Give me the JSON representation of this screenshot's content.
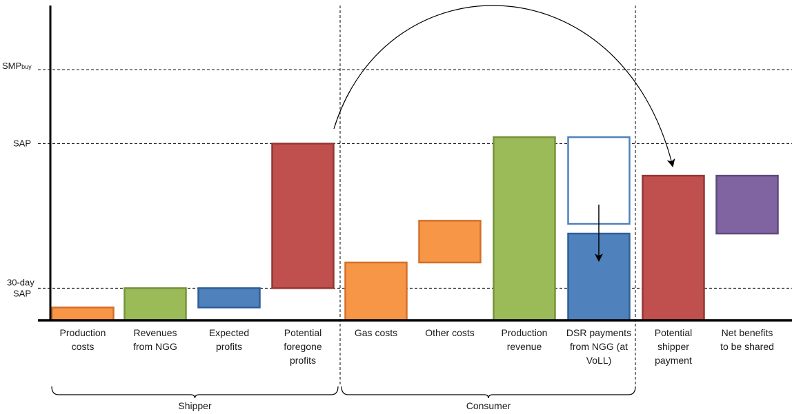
{
  "chart_data": {
    "type": "bar",
    "levels": [
      {
        "label": "SMPbuy",
        "value": 3.9
      },
      {
        "label": "SAP",
        "value": 2.75
      },
      {
        "label": "30-day SAP",
        "value": 0.5
      }
    ],
    "categories": [
      {
        "label": "Production costs",
        "low": 0.0,
        "high": 0.2,
        "color": "#F79646",
        "border": "#D2702A",
        "style": "filled"
      },
      {
        "label": "Revenues from NGG",
        "low": 0.0,
        "high": 0.5,
        "color": "#9BBB59",
        "border": "#76923C",
        "style": "filled"
      },
      {
        "label": "Expected profits",
        "low": 0.2,
        "high": 0.5,
        "color": "#4F81BD",
        "border": "#2F5F97",
        "style": "filled"
      },
      {
        "label": "Potential foregone profits",
        "low": 0.5,
        "high": 2.75,
        "color": "#C0504D",
        "border": "#943634",
        "style": "filled"
      },
      {
        "label": "Gas costs",
        "low": 0.0,
        "high": 0.9,
        "color": "#F79646",
        "border": "#D2702A",
        "style": "filled"
      },
      {
        "label": "Other costs",
        "low": 0.9,
        "high": 1.55,
        "color": "#F79646",
        "border": "#D2702A",
        "style": "filled"
      },
      {
        "label": "Production revenue",
        "low": 0.0,
        "high": 2.85,
        "color": "#9BBB59",
        "border": "#76923C",
        "style": "filled"
      },
      {
        "label": "DSR payments from NGG (at VoLL)",
        "low": 1.5,
        "high": 2.85,
        "color": "#FFFFFF",
        "border": "#4F81BD",
        "style": "outline"
      },
      {
        "label": "DSR payments from NGG (at VoLL)",
        "low": 0.0,
        "high": 1.35,
        "color": "#4F81BD",
        "border": "#2F5F97",
        "style": "filled"
      },
      {
        "label": "Potential shipper payment",
        "low": 0.0,
        "high": 2.25,
        "color": "#C0504D",
        "border": "#943634",
        "style": "filled"
      },
      {
        "label": "Net benefits to be shared",
        "low": 1.35,
        "high": 2.25,
        "color": "#8064A2",
        "border": "#5F497A",
        "style": "filled"
      }
    ],
    "x_labels": [
      [
        "Production",
        "costs"
      ],
      [
        "Revenues",
        "from NGG"
      ],
      [
        "Expected",
        "profits"
      ],
      [
        "Potential",
        "foregone",
        "profits"
      ],
      [
        "Gas costs"
      ],
      [
        "Other costs"
      ],
      [
        "Production",
        "revenue"
      ],
      [
        "DSR payments",
        "from NGG (at",
        "VoLL)"
      ],
      [
        "Potential",
        "shipper",
        "payment"
      ],
      [
        "Net benefits",
        "to be shared"
      ]
    ],
    "groups": [
      {
        "label": "Shipper",
        "from": 0,
        "to": 3
      },
      {
        "label": "Consumer",
        "from": 4,
        "to": 7
      }
    ],
    "ylim": [
      0,
      4.6
    ],
    "grid": false,
    "legend": "none",
    "xlabel": "",
    "ylabel": "",
    "title": ""
  }
}
